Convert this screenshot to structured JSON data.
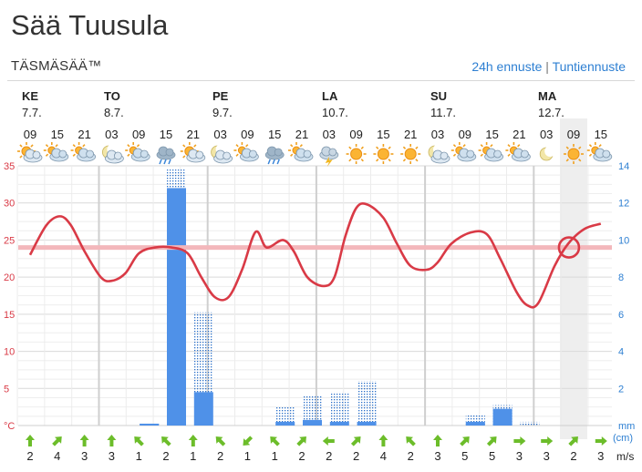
{
  "header": {
    "title": "Sää Tuusula",
    "subtitle": "TÄSMÄSÄÄ™",
    "link_24h": "24h ennuste",
    "link_separator": "|",
    "link_hourly": "Tuntiennuste"
  },
  "days": [
    {
      "name": "KE",
      "date": "7.7."
    },
    {
      "name": "TO",
      "date": "8.7."
    },
    {
      "name": "PE",
      "date": "9.7."
    },
    {
      "name": "LA",
      "date": "10.7."
    },
    {
      "name": "SU",
      "date": "11.7."
    },
    {
      "name": "MA",
      "date": "12.7."
    }
  ],
  "colors": {
    "temperature": "#d93a46",
    "temperature_axis": "#d93a46",
    "precip_axis": "#2d7fd2",
    "precip_bar": "#4f91e8",
    "precip_max": "#2a6fc9",
    "wind_arrow": "#6cbd2a",
    "current_highlight": "#eeeeee",
    "now_line": "#f3b7bb"
  },
  "chart_data": {
    "type": "line",
    "hours": [
      "09",
      "15",
      "21",
      "03",
      "09",
      "15",
      "21",
      "03",
      "09",
      "15",
      "21",
      "03",
      "09",
      "15",
      "21",
      "03",
      "09",
      "15",
      "21",
      "03",
      "09",
      "15"
    ],
    "weather_icons": [
      "sun-cloud-icon",
      "cloudy-icon",
      "cloudy-icon",
      "moon-cloud-icon",
      "cloudy-icon",
      "rain-cloud-icon",
      "sun-cloud-icon",
      "moon-cloud-icon",
      "cloudy-icon",
      "rain-cloud-icon",
      "cloudy-icon",
      "thunder-icon",
      "sun-icon",
      "sun-icon",
      "sun-icon",
      "moon-cloud-icon",
      "cloudy-icon",
      "cloudy-icon",
      "cloudy-icon",
      "moon-icon",
      "sun-icon",
      "cloudy-icon"
    ],
    "temperature_axis": {
      "ticks": [
        35,
        30,
        25,
        20,
        15,
        10,
        5
      ],
      "bottom_label": "°C",
      "ylim": [
        0,
        35
      ]
    },
    "precip_axis": {
      "ticks": [
        14,
        12,
        10,
        8,
        6,
        4,
        2
      ],
      "unit_label": "mm",
      "unit_label_2": "(cm)",
      "ylim": [
        0,
        14
      ]
    },
    "temperature": [
      23.0,
      28.0,
      24.5,
      19.5,
      23.5,
      24.0,
      23.5,
      16.8,
      26.0,
      25.0,
      20.0,
      19.0,
      29.5,
      27.5,
      21.5,
      21.5,
      25.0,
      26.0,
      20.5,
      16.0,
      22.5,
      24.0
    ],
    "temperature_curve_points": [
      [
        0.0,
        23.0
      ],
      [
        0.6,
        27.0
      ],
      [
        1.1,
        28.2
      ],
      [
        1.5,
        27.0
      ],
      [
        2.0,
        23.5
      ],
      [
        2.6,
        20.0
      ],
      [
        3.0,
        19.5
      ],
      [
        3.5,
        20.5
      ],
      [
        4.0,
        23.2
      ],
      [
        4.6,
        24.0
      ],
      [
        5.2,
        24.0
      ],
      [
        5.8,
        23.2
      ],
      [
        6.3,
        20.0
      ],
      [
        6.8,
        17.3
      ],
      [
        7.3,
        17.3
      ],
      [
        7.8,
        21.0
      ],
      [
        8.3,
        26.1
      ],
      [
        8.7,
        24.0
      ],
      [
        9.3,
        25.0
      ],
      [
        9.7,
        23.5
      ],
      [
        10.2,
        20.0
      ],
      [
        10.8,
        18.8
      ],
      [
        11.2,
        20.0
      ],
      [
        11.6,
        25.5
      ],
      [
        12.0,
        29.3
      ],
      [
        12.4,
        29.8
      ],
      [
        13.0,
        28.0
      ],
      [
        13.5,
        24.5
      ],
      [
        14.0,
        21.5
      ],
      [
        14.6,
        21.0
      ],
      [
        15.0,
        22.0
      ],
      [
        15.5,
        24.5
      ],
      [
        16.2,
        26.0
      ],
      [
        16.8,
        25.8
      ],
      [
        17.3,
        22.5
      ],
      [
        17.9,
        18.0
      ],
      [
        18.3,
        16.2
      ],
      [
        18.7,
        16.5
      ],
      [
        19.3,
        21.5
      ],
      [
        19.8,
        24.5
      ],
      [
        20.4,
        26.5
      ],
      [
        21.0,
        27.2
      ]
    ],
    "now_temperature": 24.0,
    "current_marker": {
      "index": 19.83,
      "temperature": 24.0
    },
    "precip": [
      0,
      0,
      0,
      0,
      0.1,
      12.8,
      1.8,
      0,
      0,
      0.2,
      0.3,
      0.2,
      0.2,
      0,
      0,
      0,
      0.2,
      0.9,
      0,
      0,
      0,
      0
    ],
    "precip_max": [
      0,
      0,
      0,
      0,
      0.1,
      13.8,
      6.1,
      0,
      0,
      1.0,
      1.6,
      1.8,
      2.4,
      0,
      0,
      0,
      0.6,
      1.1,
      0.2,
      0,
      0,
      0
    ],
    "wind_speeds": [
      "2",
      "4",
      "3",
      "3",
      "1",
      "2",
      "1",
      "2",
      "1",
      "1",
      "2",
      "2",
      "2",
      "4",
      "2",
      "3",
      "5",
      "5",
      "3",
      "3",
      "2",
      "3"
    ],
    "wind_directions_deg": [
      0,
      45,
      0,
      0,
      315,
      315,
      0,
      315,
      225,
      315,
      45,
      270,
      45,
      0,
      315,
      0,
      45,
      45,
      90,
      90,
      45,
      90
    ],
    "wind_unit": "m/s",
    "highlighted_column": 20
  }
}
